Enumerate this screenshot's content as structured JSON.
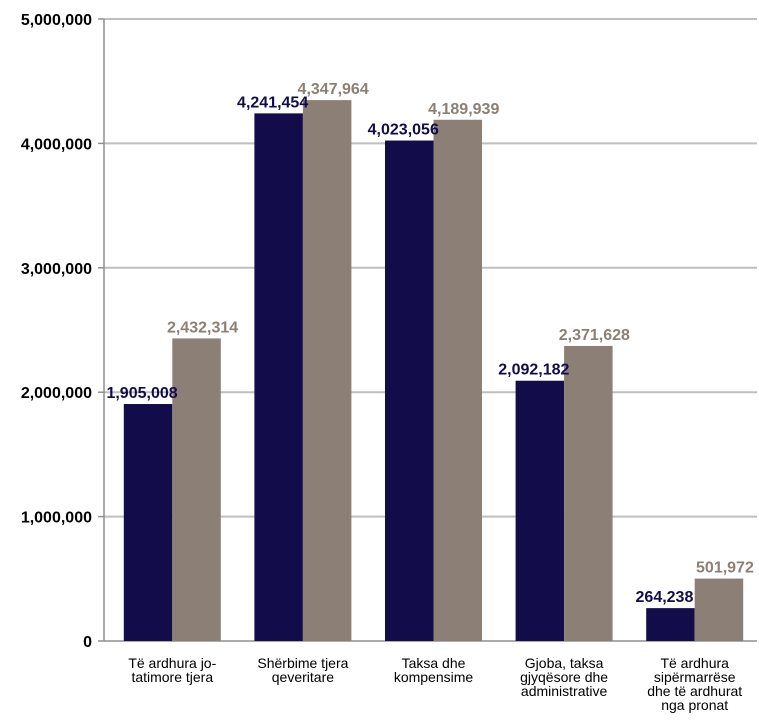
{
  "chart_data": {
    "type": "bar",
    "title": "",
    "xlabel": "",
    "ylabel": "",
    "ylim": [
      0,
      5000000
    ],
    "yticks": [
      0,
      1000000,
      2000000,
      3000000,
      4000000,
      5000000
    ],
    "ytick_labels": [
      "0",
      "1,000,000",
      "2,000,000",
      "3,000,000",
      "4,000,000",
      "5,000,000"
    ],
    "grid": true,
    "legend": "none",
    "categories": [
      [
        "Të ardhura jo-",
        "tatimore tjera"
      ],
      [
        "Shërbime tjera",
        "qeveritare"
      ],
      [
        "Taksa dhe",
        "kompensime"
      ],
      [
        "Gjoba, taksa",
        "gjyqësore dhe",
        "administrative"
      ],
      [
        "Të ardhura",
        "sipërmarrëse",
        "dhe të ardhurat",
        "nga pronat"
      ]
    ],
    "series": [
      {
        "color": "#130c4b",
        "values": [
          1905008,
          4241454,
          4023056,
          2092182,
          264238
        ],
        "labels": [
          "1,905,008",
          "4,241,454",
          "4,023,056",
          "2,092,182",
          "264,238"
        ]
      },
      {
        "color": "#8c8076",
        "values": [
          2432314,
          4347964,
          4189939,
          2371628,
          501972
        ],
        "labels": [
          "2,432,314",
          "4,347,964",
          "4,189,939",
          "2,371,628",
          "501,972"
        ]
      }
    ]
  }
}
